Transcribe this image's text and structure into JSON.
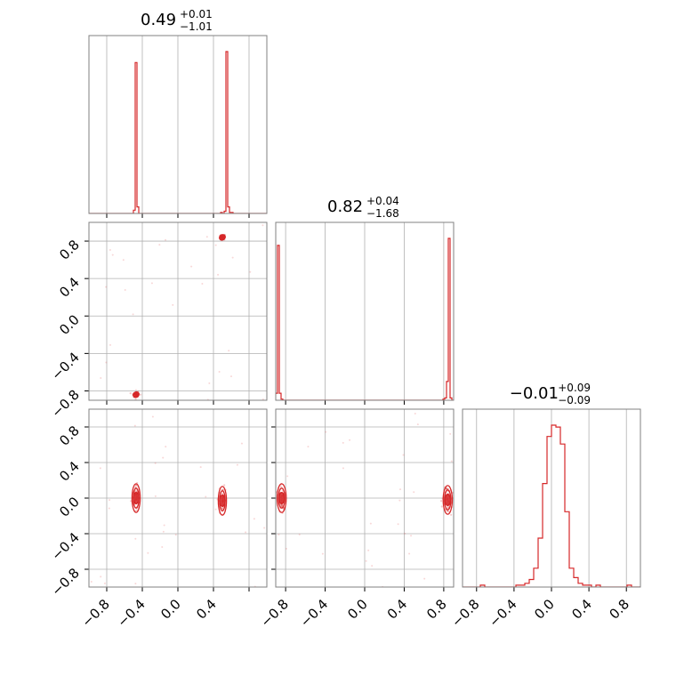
{
  "figure": {
    "type": "corner-plot",
    "colors": {
      "series": "#d62728",
      "frame": "#808080",
      "grid": "#b0b0b0"
    }
  },
  "chart_data": [
    {
      "type": "bar",
      "panel": "hist-p0",
      "title": {
        "main": "0.49",
        "sup": "+0.01",
        "sub": "−1.01"
      },
      "xlim": [
        -1.0,
        1.0
      ],
      "bins_from": -1.0,
      "bin_width": 0.02,
      "values": [
        0,
        0,
        0,
        0,
        0,
        0,
        0,
        0,
        0,
        0,
        0,
        0,
        0,
        0,
        0,
        0,
        0,
        0,
        0,
        0,
        0,
        0,
        0,
        0,
        0,
        3,
        138,
        6,
        0,
        0,
        0,
        0,
        0,
        0,
        0,
        0,
        0,
        0,
        0,
        0,
        0,
        0,
        0,
        0,
        0,
        0,
        0,
        0,
        0,
        0,
        0,
        0,
        0,
        0,
        0,
        0,
        0,
        0,
        0,
        0,
        0,
        0,
        0,
        0,
        0,
        0,
        0,
        0,
        0,
        0,
        0,
        0,
        0,
        0,
        1,
        0,
        2,
        148,
        6,
        1,
        1,
        0,
        0,
        0,
        0,
        0,
        0,
        0,
        0,
        0,
        0,
        0,
        0,
        0,
        0,
        0,
        0,
        0,
        0,
        0
      ],
      "show_xticks": false
    },
    {
      "type": "scatter",
      "panel": "p0-vs-p1",
      "xlim": [
        -1.0,
        1.0
      ],
      "ylim": [
        -0.9,
        1.0
      ],
      "yticks": [
        "0.8",
        "0.4",
        "0.0",
        "−0.4",
        "−0.8"
      ],
      "cluster_centers": [
        [
          0.5,
          0.84
        ],
        [
          -0.47,
          -0.84
        ]
      ]
    },
    {
      "type": "bar",
      "panel": "hist-p1",
      "title": {
        "main": "0.82",
        "sup": "+0.04",
        "sub": "−1.68"
      },
      "xlim": [
        -0.9,
        0.9
      ],
      "bins_from": -0.9,
      "bin_width": 0.018,
      "values": [
        6,
        132,
        6,
        1,
        0,
        0,
        0,
        0,
        0,
        0,
        0,
        0,
        0,
        0,
        0,
        0,
        0,
        0,
        0,
        0,
        0,
        0,
        0,
        0,
        0,
        0,
        0,
        0,
        0,
        0,
        0,
        0,
        0,
        0,
        0,
        0,
        0,
        0,
        0,
        0,
        0,
        0,
        0,
        0,
        0,
        0,
        0,
        0,
        0,
        0,
        0,
        0,
        0,
        0,
        0,
        0,
        0,
        0,
        0,
        0,
        0,
        0,
        0,
        0,
        0,
        0,
        0,
        0,
        0,
        0,
        0,
        0,
        0,
        0,
        0,
        0,
        0,
        0,
        0,
        0,
        0,
        0,
        0,
        0,
        0,
        0,
        0,
        0,
        0,
        0,
        0,
        0,
        0,
        0,
        1,
        2,
        16,
        138,
        2,
        0
      ],
      "show_xticks": false
    },
    {
      "type": "scatter",
      "panel": "p0-vs-p2",
      "xlim": [
        -1.0,
        1.0
      ],
      "ylim": [
        -1.0,
        1.0
      ],
      "xticks": [
        "−0.8",
        "−0.4",
        "0.0",
        "0.4"
      ],
      "yticks": [
        "0.8",
        "0.4",
        "0.0",
        "−0.4",
        "−0.8"
      ],
      "cluster_centers": [
        [
          -0.47,
          0.0
        ],
        [
          0.5,
          -0.03
        ]
      ]
    },
    {
      "type": "scatter",
      "panel": "p1-vs-p2",
      "xlim": [
        -0.9,
        0.9
      ],
      "ylim": [
        -1.0,
        1.0
      ],
      "xticks": [
        "−0.8",
        "−0.4",
        "0.0",
        "0.4",
        "0.8"
      ],
      "cluster_centers": [
        [
          -0.84,
          0.0
        ],
        [
          0.84,
          -0.02
        ]
      ]
    },
    {
      "type": "bar",
      "panel": "hist-p2",
      "title": {
        "main": "−0.01",
        "sup": "+0.09",
        "sub": "−0.09"
      },
      "xlim": [
        -0.95,
        0.95
      ],
      "bins_from": -0.95,
      "bin_width": 0.0475,
      "values": [
        0,
        0,
        0,
        0,
        1,
        0,
        0,
        0,
        0,
        0,
        0,
        0,
        1,
        1,
        2,
        4,
        10,
        26,
        55,
        80,
        86,
        85,
        76,
        40,
        10,
        5,
        2,
        1,
        1,
        0,
        1,
        0,
        0,
        0,
        0,
        0,
        0,
        1,
        0,
        0
      ],
      "xticks": [
        "−0.8",
        "−0.4",
        "0.0",
        "0.4",
        "0.8"
      ]
    }
  ]
}
